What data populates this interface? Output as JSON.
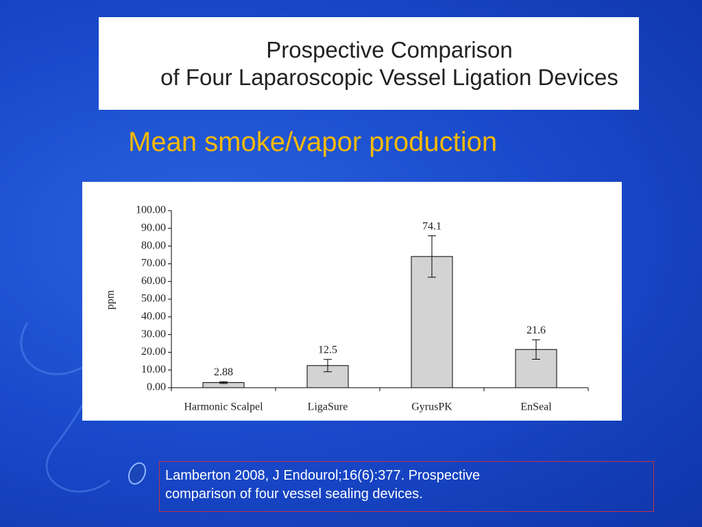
{
  "slide": {
    "title_lines": [
      "Prospective Comparison",
      "of Four Laparoscopic Vessel Ligation Devices"
    ],
    "subtitle": "Mean smoke/vapor production",
    "citation_lines": [
      "Lamberton 2008, J Endourol;16(6):377. Prospective",
      "comparison of four vessel sealing devices."
    ]
  },
  "chart_data": {
    "type": "bar",
    "y_label": "ppm",
    "categories": [
      "Harmonic Scalpel",
      "LigaSure",
      "GyrusPK",
      "EnSeal"
    ],
    "values": [
      2.88,
      12.5,
      74.1,
      21.6
    ],
    "errors": [
      0.5,
      3.5,
      11.7,
      5.5
    ],
    "color": "#d3d3d3",
    "ylim": [
      0,
      100
    ],
    "yticks": [
      {
        "value": 0,
        "label": "0.00"
      },
      {
        "value": 10,
        "label": "10.00"
      },
      {
        "value": 20,
        "label": "20.00"
      },
      {
        "value": 30,
        "label": "30.00"
      },
      {
        "value": 40,
        "label": "40.00"
      },
      {
        "value": 50,
        "label": "50.00"
      },
      {
        "value": 60,
        "label": "60.00"
      },
      {
        "value": 70,
        "label": "70.00"
      },
      {
        "value": 80,
        "label": "80.00"
      },
      {
        "value": 90,
        "label": "90.00"
      },
      {
        "value": 100,
        "label": "100.00"
      }
    ],
    "grid": false
  }
}
